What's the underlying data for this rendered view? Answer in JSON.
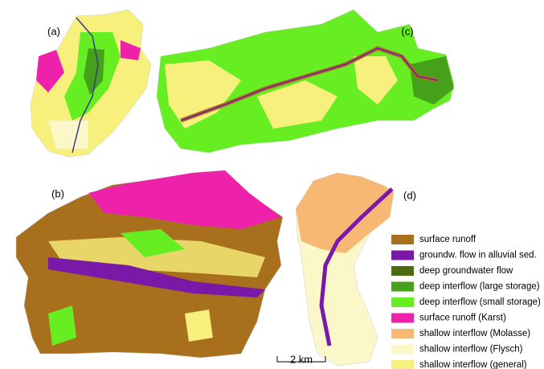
{
  "panels": [
    {
      "label": "(a)"
    },
    {
      "label": "(c)"
    },
    {
      "label": "(b)"
    },
    {
      "label": "(d)"
    }
  ],
  "legend": [
    {
      "label": "surface runoff",
      "color": "#a8701c"
    },
    {
      "label": "groundw. flow in alluvial sed.",
      "color": "#7a18a8"
    },
    {
      "label": "deep groundwater flow",
      "color": "#4c6c12"
    },
    {
      "label": "deep interflow (large storage)",
      "color": "#45a11a"
    },
    {
      "label": "deep interflow (small storage)",
      "color": "#66ee22"
    },
    {
      "label": "surface runoff (Karst)",
      "color": "#ee22aa"
    },
    {
      "label": "shallow interflow (Molasse)",
      "color": "#f6b872"
    },
    {
      "label": "shallow interflow (Flysch)",
      "color": "#fbf7c8"
    },
    {
      "label": "shallow interflow (general)",
      "color": "#f7f07c"
    }
  ],
  "scale_bar": "2 km"
}
